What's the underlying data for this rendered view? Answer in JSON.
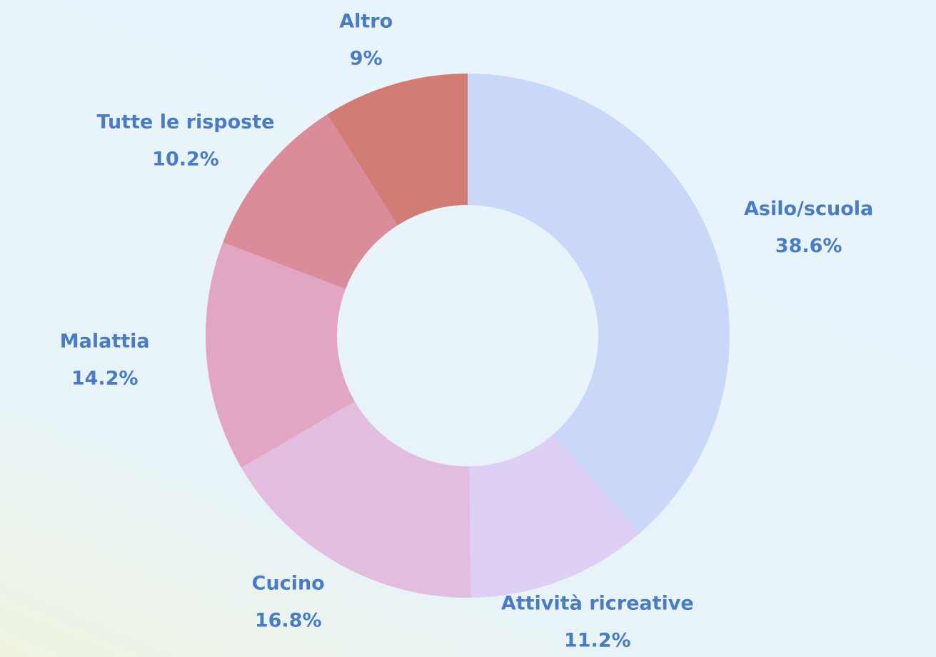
{
  "chart_data": {
    "type": "donut",
    "categories": [
      "Asilo/scuola",
      "Attività ricreative",
      "Cucino",
      "Malattia",
      "Tutte le risposte",
      "Altro"
    ],
    "values": [
      38.6,
      11.2,
      16.8,
      14.2,
      10.2,
      9
    ],
    "value_labels": [
      "38.6%",
      "11.2%",
      "16.8%",
      "14.2%",
      "10.2%",
      "9%"
    ],
    "colors": [
      "#c9d8f9",
      "#ddd0f4",
      "#e2bde0",
      "#e2a6c2",
      "#db8c9b",
      "#d17d76"
    ]
  }
}
